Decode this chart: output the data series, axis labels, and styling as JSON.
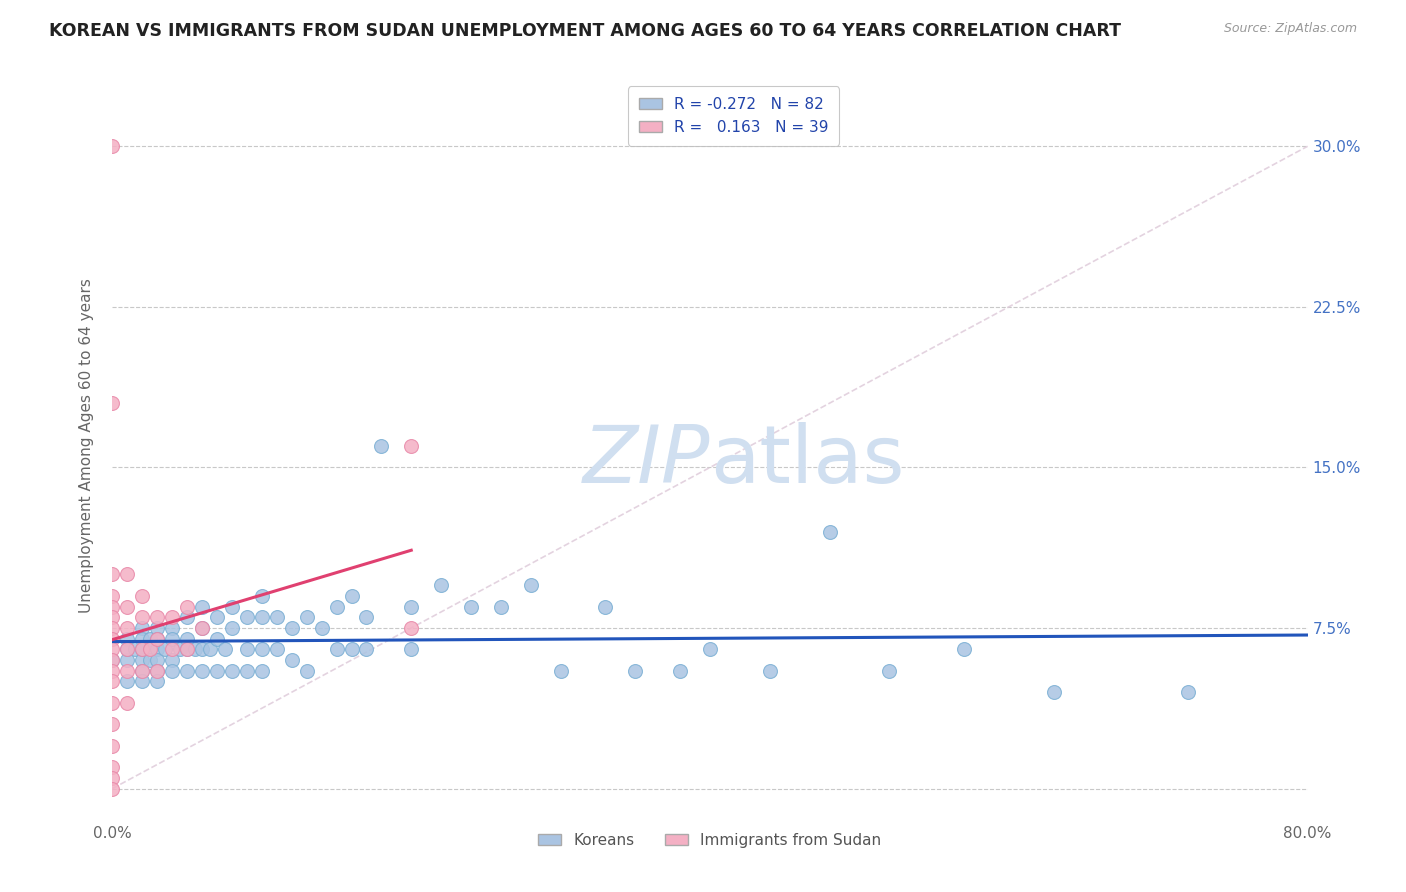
{
  "title": "KOREAN VS IMMIGRANTS FROM SUDAN UNEMPLOYMENT AMONG AGES 60 TO 64 YEARS CORRELATION CHART",
  "source": "Source: ZipAtlas.com",
  "ylabel": "Unemployment Among Ages 60 to 64 years",
  "xlim": [
    0.0,
    0.8
  ],
  "ylim": [
    -0.015,
    0.335
  ],
  "xticks": [
    0.0,
    0.2,
    0.4,
    0.6,
    0.8
  ],
  "xticklabels": [
    "0.0%",
    "",
    "",
    "",
    "80.0%"
  ],
  "yticks": [
    0.0,
    0.075,
    0.15,
    0.225,
    0.3
  ],
  "right_yticklabels": [
    "",
    "7.5%",
    "15.0%",
    "22.5%",
    "30.0%"
  ],
  "korean_R": -0.272,
  "korean_N": 82,
  "sudan_R": 0.163,
  "sudan_N": 39,
  "korean_color": "#aac4e2",
  "korean_edge_color": "#7aafd4",
  "korean_line_color": "#2255bb",
  "sudan_color": "#f4b0c4",
  "sudan_edge_color": "#e888a8",
  "sudan_line_color": "#e04070",
  "background_color": "#ffffff",
  "grid_color": "#c8c8c8",
  "diag_line_color": "#ddc8d8",
  "watermark_color": "#d0dff0",
  "korean_x": [
    0.0,
    0.01,
    0.01,
    0.01,
    0.01,
    0.015,
    0.02,
    0.02,
    0.02,
    0.02,
    0.02,
    0.02,
    0.025,
    0.025,
    0.025,
    0.03,
    0.03,
    0.03,
    0.03,
    0.03,
    0.03,
    0.035,
    0.04,
    0.04,
    0.04,
    0.04,
    0.045,
    0.05,
    0.05,
    0.05,
    0.05,
    0.055,
    0.06,
    0.06,
    0.06,
    0.06,
    0.065,
    0.07,
    0.07,
    0.07,
    0.075,
    0.08,
    0.08,
    0.08,
    0.09,
    0.09,
    0.09,
    0.1,
    0.1,
    0.1,
    0.1,
    0.11,
    0.11,
    0.12,
    0.12,
    0.13,
    0.13,
    0.14,
    0.15,
    0.15,
    0.16,
    0.16,
    0.17,
    0.17,
    0.18,
    0.2,
    0.2,
    0.22,
    0.24,
    0.26,
    0.28,
    0.3,
    0.33,
    0.35,
    0.38,
    0.4,
    0.44,
    0.48,
    0.52,
    0.57,
    0.63,
    0.72
  ],
  "korean_y": [
    0.06,
    0.07,
    0.06,
    0.065,
    0.05,
    0.065,
    0.075,
    0.07,
    0.06,
    0.065,
    0.055,
    0.05,
    0.07,
    0.065,
    0.06,
    0.075,
    0.07,
    0.065,
    0.06,
    0.055,
    0.05,
    0.065,
    0.075,
    0.07,
    0.06,
    0.055,
    0.065,
    0.08,
    0.07,
    0.065,
    0.055,
    0.065,
    0.085,
    0.075,
    0.065,
    0.055,
    0.065,
    0.08,
    0.07,
    0.055,
    0.065,
    0.085,
    0.075,
    0.055,
    0.08,
    0.065,
    0.055,
    0.09,
    0.08,
    0.065,
    0.055,
    0.08,
    0.065,
    0.075,
    0.06,
    0.08,
    0.055,
    0.075,
    0.085,
    0.065,
    0.09,
    0.065,
    0.08,
    0.065,
    0.16,
    0.085,
    0.065,
    0.095,
    0.085,
    0.085,
    0.095,
    0.055,
    0.085,
    0.055,
    0.055,
    0.065,
    0.055,
    0.12,
    0.055,
    0.065,
    0.045,
    0.045
  ],
  "sudan_x": [
    0.0,
    0.0,
    0.0,
    0.0,
    0.0,
    0.0,
    0.0,
    0.0,
    0.0,
    0.0,
    0.0,
    0.0,
    0.0,
    0.0,
    0.0,
    0.0,
    0.0,
    0.0,
    0.01,
    0.01,
    0.01,
    0.01,
    0.01,
    0.01,
    0.02,
    0.02,
    0.02,
    0.02,
    0.025,
    0.03,
    0.03,
    0.03,
    0.04,
    0.04,
    0.05,
    0.05,
    0.06,
    0.2,
    0.2
  ],
  "sudan_y": [
    0.3,
    0.18,
    0.1,
    0.09,
    0.085,
    0.08,
    0.075,
    0.07,
    0.065,
    0.06,
    0.055,
    0.05,
    0.04,
    0.03,
    0.02,
    0.01,
    0.005,
    0.0,
    0.1,
    0.085,
    0.075,
    0.065,
    0.055,
    0.04,
    0.09,
    0.08,
    0.065,
    0.055,
    0.065,
    0.08,
    0.07,
    0.055,
    0.08,
    0.065,
    0.085,
    0.065,
    0.075,
    0.16,
    0.075
  ]
}
